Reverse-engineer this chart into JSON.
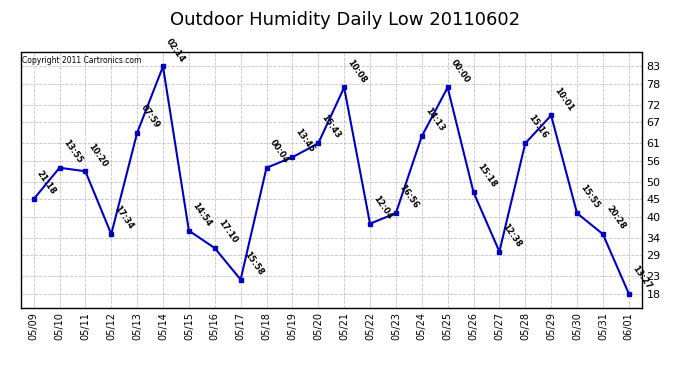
{
  "title": "Outdoor Humidity Daily Low 20110602",
  "copyright": "Copyright 2011 Cartronics.com",
  "x_labels": [
    "05/09",
    "05/10",
    "05/11",
    "05/12",
    "05/13",
    "05/14",
    "05/15",
    "05/16",
    "05/17",
    "05/18",
    "05/19",
    "05/20",
    "05/21",
    "05/22",
    "05/23",
    "05/24",
    "05/25",
    "05/26",
    "05/27",
    "05/28",
    "05/29",
    "05/30",
    "05/31",
    "06/01"
  ],
  "y_values": [
    45,
    54,
    53,
    35,
    64,
    83,
    36,
    31,
    22,
    54,
    57,
    61,
    77,
    38,
    41,
    63,
    77,
    47,
    30,
    61,
    69,
    41,
    35,
    18
  ],
  "point_labels": [
    "21:18",
    "13:55",
    "10:20",
    "17:34",
    "07:59",
    "02:14",
    "14:54",
    "17:10",
    "15:58",
    "00:04",
    "13:45",
    "15:43",
    "10:08",
    "12:04",
    "16:56",
    "14:13",
    "00:00",
    "15:18",
    "12:38",
    "15:16",
    "10:01",
    "15:55",
    "20:28",
    "13:27"
  ],
  "line_color": "#0000bb",
  "marker_color": "#0000bb",
  "background_color": "#ffffff",
  "grid_color": "#bbbbbb",
  "title_fontsize": 13,
  "y_ticks": [
    18,
    23,
    29,
    34,
    40,
    45,
    50,
    56,
    61,
    67,
    72,
    78,
    83
  ],
  "ylim": [
    14,
    87
  ],
  "xlim": [
    -0.5,
    23.5
  ]
}
